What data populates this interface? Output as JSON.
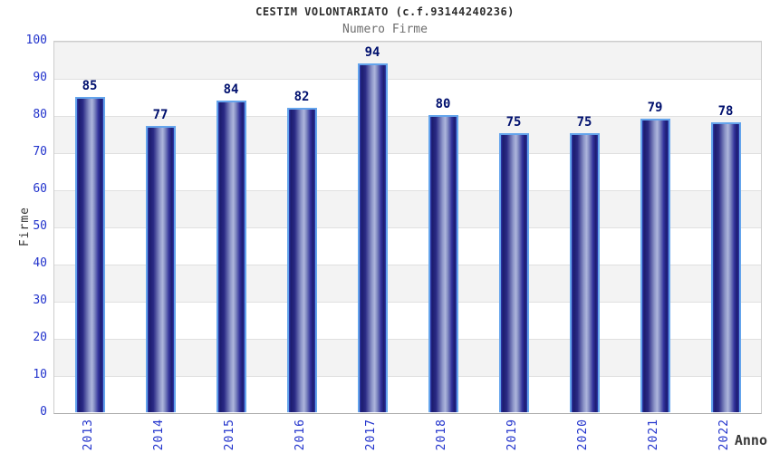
{
  "chart_data": {
    "type": "bar",
    "title": "CESTIM VOLONTARIATO (c.f.93144240236)",
    "subtitle": "Numero Firme",
    "categories": [
      "2013",
      "2014",
      "2015",
      "2016",
      "2017",
      "2018",
      "2019",
      "2020",
      "2021",
      "2022"
    ],
    "values": [
      85,
      77,
      84,
      82,
      94,
      80,
      75,
      75,
      79,
      78
    ],
    "xlabel": "Anno",
    "ylabel": "Firme",
    "ylim": [
      0,
      100
    ],
    "yticks": [
      0,
      10,
      20,
      30,
      40,
      50,
      60,
      70,
      80,
      90,
      100
    ],
    "grid": "horizontal gridlines every 10 units with alternating gray/white bands",
    "legend": "none",
    "bar_value_labels": true
  },
  "colors": {
    "axis_tick_label": "#2233cc",
    "bar_value_label": "#00106e",
    "bar_dark": "#1c1c6e",
    "bar_light": "#aeb6dc",
    "bar_edge_highlight": "#2e3ab0",
    "bar_border": "#64a4ec",
    "band_gray": "#f3f3f3",
    "band_white": "#ffffff",
    "grid_line": "#e0e0e0",
    "plot_border": "#cccccc",
    "title_text": "#2e2e2e",
    "subtitle_text": "#6e6e6e",
    "axis_name_text": "#3a3a3a"
  }
}
